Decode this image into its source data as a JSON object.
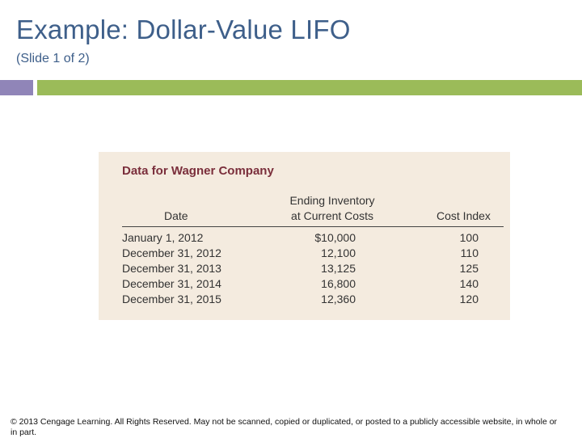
{
  "slide": {
    "title": "Example:  Dollar-Value LIFO",
    "subtitle": "(Slide 1 of 2)"
  },
  "table": {
    "title": "Data for Wagner Company",
    "headers": {
      "date": "Date",
      "inventory_line1": "Ending Inventory",
      "inventory_line2": "at Current Costs",
      "index": "Cost Index"
    },
    "rows": [
      {
        "date": "January 1, 2012",
        "inventory": "$10,000",
        "index": "100"
      },
      {
        "date": "December 31, 2012",
        "inventory": "12,100",
        "index": "110"
      },
      {
        "date": "December 31, 2013",
        "inventory": "13,125",
        "index": "125"
      },
      {
        "date": "December 31, 2014",
        "inventory": "16,800",
        "index": "140"
      },
      {
        "date": "December 31, 2015",
        "inventory": "12,360",
        "index": "120"
      }
    ]
  },
  "footer": {
    "copyright": "© 2013 Cengage Learning. All Rights Reserved. May not be scanned, copied or duplicated, or posted to a publicly accessible website, in whole or in part."
  },
  "colors": {
    "title": "#3e5f8a",
    "bar_left": "#9085b8",
    "bar_right": "#9bbb59",
    "panel": "#f4ebdf",
    "table_title": "#7a2e3b"
  }
}
